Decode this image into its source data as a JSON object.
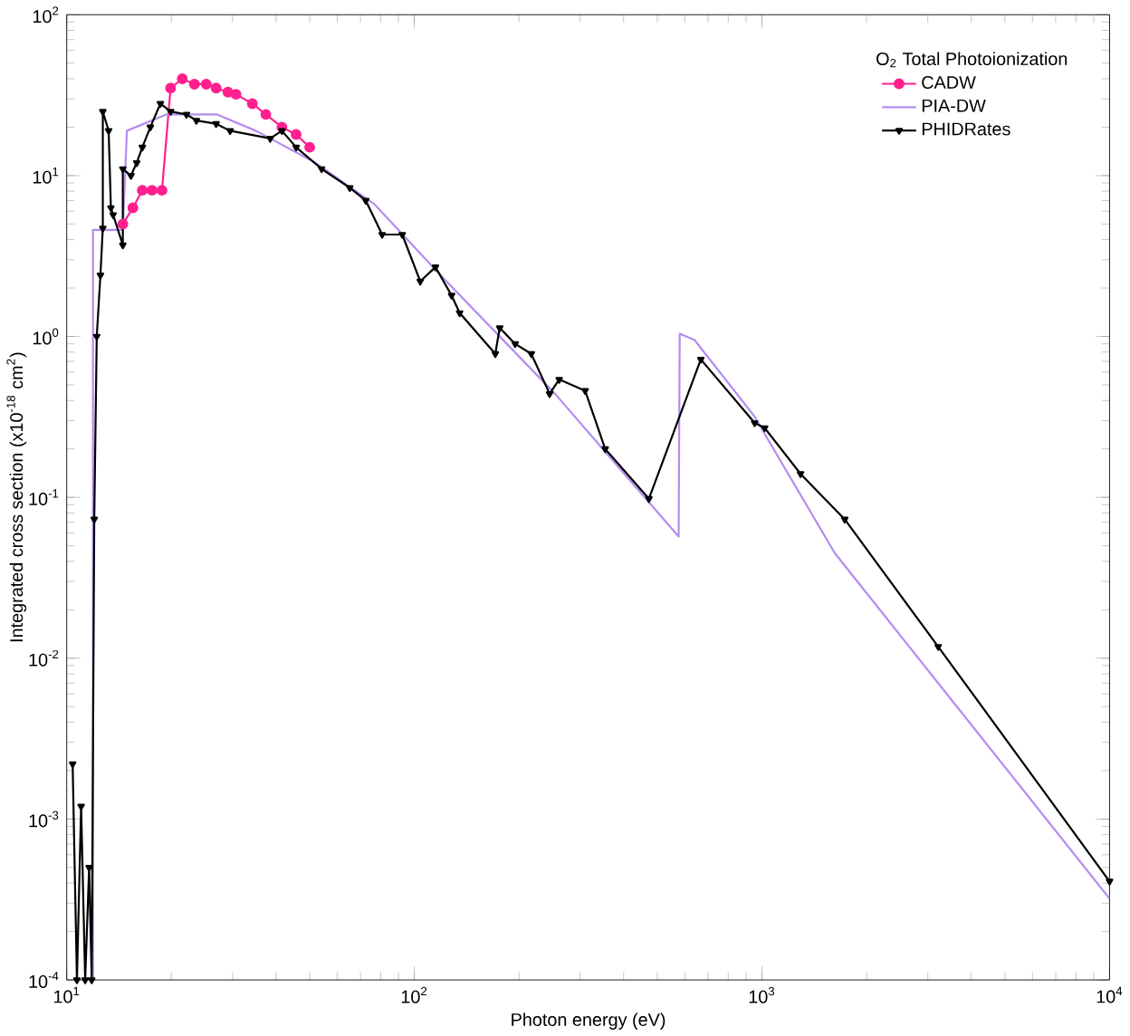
{
  "chart_data": {
    "type": "line",
    "log": "xy",
    "xlabel": "Photon energy (eV)",
    "ylabel": "Integrated cross section (x10$^{-18}$ cm$^{2}$)",
    "legend_title": "O$_{2}$ Total Photoionization",
    "legend": "top right",
    "xlim": [
      10,
      10000
    ],
    "ylim": [
      0.0001,
      100
    ],
    "xticks": [
      {
        "value": 10,
        "label": "10$^{1}$"
      },
      {
        "value": 100,
        "label": "10$^{2}$"
      },
      {
        "value": 1000,
        "label": "10$^{3}$"
      },
      {
        "value": 10000,
        "label": "10$^{4}$"
      }
    ],
    "yticks": [
      {
        "value": 0.0001,
        "label": "10$^{-4}$"
      },
      {
        "value": 0.001,
        "label": "10$^{-3}$"
      },
      {
        "value": 0.01,
        "label": "10$^{-2}$"
      },
      {
        "value": 0.1,
        "label": "10$^{-1}$"
      },
      {
        "value": 1,
        "label": "10$^{0}$"
      },
      {
        "value": 10,
        "label": "10$^{1}$"
      },
      {
        "value": 100,
        "label": "10$^{2}$"
      }
    ],
    "series": [
      {
        "name": "CADW",
        "color": "#ff1f8e",
        "marker": "circle",
        "x": [
          14.5,
          15.5,
          16.5,
          17.6,
          18.8,
          19.9,
          21.5,
          23.3,
          25.2,
          26.9,
          29.1,
          30.7,
          34.2,
          37.4,
          41.6,
          45.7,
          50
        ],
        "values": [
          5.0,
          6.3,
          8.1,
          8.1,
          8.1,
          35,
          40,
          37,
          37,
          35,
          33,
          32,
          28,
          24,
          20,
          18,
          15
        ]
      },
      {
        "name": "PIA-DW",
        "color": "#b48cf0",
        "marker": "none",
        "x": [
          11.9,
          11.9,
          14.5,
          14.9,
          19.4,
          27,
          35,
          52,
          77,
          119,
          254,
          576,
          580,
          640,
          950,
          1620,
          10000
        ],
        "values": [
          0.0001,
          4.6,
          4.6,
          19,
          24,
          24,
          19,
          12,
          6.6,
          2.4,
          0.44,
          0.057,
          1.04,
          0.95,
          0.32,
          0.045,
          0.00032
        ]
      },
      {
        "name": "PHIDRates",
        "color": "#000000",
        "marker": "triangle",
        "x": [
          10.4,
          10.7,
          11.0,
          11.3,
          11.6,
          11.8,
          12.0,
          12.1,
          12.2,
          12.5,
          12.7,
          12.7,
          13.2,
          13.4,
          13.6,
          14.5,
          14.5,
          15.3,
          15.9,
          16.5,
          17.4,
          18.6,
          19.9,
          22.1,
          23.6,
          26.9,
          29.5,
          38.5,
          41.6,
          45.7,
          54.1,
          65.2,
          72.5,
          80.8,
          92.3,
          104,
          115,
          128,
          135,
          171,
          176,
          195,
          217,
          245,
          261,
          310,
          354,
          473,
          667,
          953,
          1018,
          1291,
          1730,
          3214,
          10000
        ],
        "values": [
          0.0022,
          0.0001,
          0.0012,
          0.0001,
          0.0005,
          0.0001,
          0.073,
          null,
          1.0,
          2.4,
          4.7,
          25,
          19,
          6.3,
          5.7,
          3.7,
          11,
          10,
          12,
          15,
          20,
          28,
          25,
          24,
          22,
          21,
          19,
          17,
          19,
          15,
          11,
          8.4,
          7.0,
          4.3,
          4.3,
          2.2,
          2.7,
          1.8,
          1.4,
          0.78,
          1.13,
          0.9,
          0.78,
          0.44,
          0.54,
          0.46,
          0.2,
          0.098,
          0.72,
          0.29,
          0.27,
          0.14,
          0.073,
          0.0118,
          0.00041
        ]
      }
    ]
  }
}
